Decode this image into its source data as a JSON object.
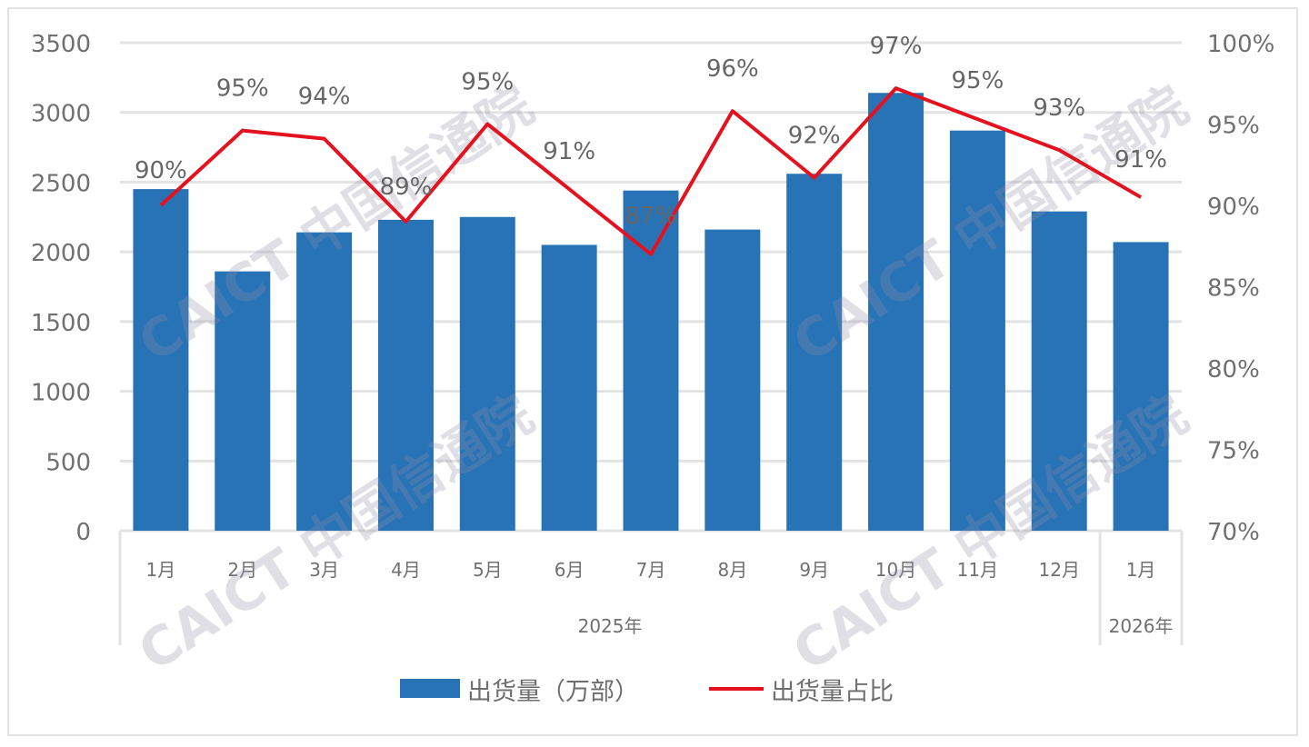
{
  "chart_data": {
    "type": "bar",
    "title": "",
    "xlabel": "",
    "ylabel": "",
    "categories": [
      "1月",
      "2月",
      "3月",
      "4月",
      "5月",
      "6月",
      "7月",
      "8月",
      "9月",
      "10月",
      "11月",
      "12月",
      "1月"
    ],
    "category_groups": [
      {
        "label": "2025年",
        "span": 12
      },
      {
        "label": "2026年",
        "span": 1
      }
    ],
    "series": [
      {
        "name": "出货量（万部）",
        "type": "bar",
        "axis": "left",
        "color": "#2873b6",
        "values": [
          2450,
          1860,
          2140,
          2230,
          2250,
          2050,
          2440,
          2160,
          2560,
          3140,
          2870,
          2290,
          2070
        ]
      },
      {
        "name": "出货量占比",
        "type": "line",
        "axis": "right",
        "color": "#e3121e",
        "values": [
          90.0,
          94.6,
          94.1,
          89.0,
          95.0,
          91.0,
          87.0,
          95.8,
          91.7,
          97.2,
          95.3,
          93.4,
          90.5
        ],
        "labels": [
          "90%",
          "95%",
          "94%",
          "89%",
          "95%",
          "91%",
          "87%",
          "96%",
          "92%",
          "97%",
          "95%",
          "93%",
          "91%"
        ]
      }
    ],
    "ylim": [
      0,
      3500
    ],
    "yticks": [
      0,
      500,
      1000,
      1500,
      2000,
      2500,
      3000,
      3500
    ],
    "y2lim": [
      70,
      100
    ],
    "y2ticks": [
      "70%",
      "75%",
      "80%",
      "85%",
      "90%",
      "95%",
      "100%"
    ],
    "grid": true,
    "legend_position": "bottom"
  },
  "legend": {
    "bar_label": "出货量（万部）",
    "line_label": "出货量占比"
  },
  "watermark": {
    "text": "CAICT 中国信通院"
  },
  "colors": {
    "bar": "#2873b6",
    "line": "#e3121e",
    "grid": "#e3e3e3",
    "axis_text": "#707070"
  }
}
